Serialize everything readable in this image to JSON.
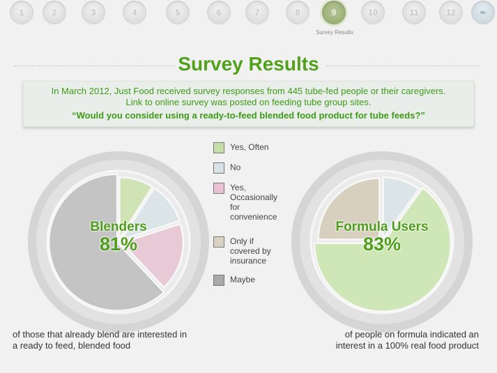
{
  "nav": {
    "items": [
      "1",
      "2",
      "3",
      "4",
      "5",
      "6",
      "7",
      "8",
      "9",
      "10",
      "11",
      "12"
    ],
    "active_index": 8,
    "active_caption": "Survey Results",
    "last_icon": "ribbon-icon"
  },
  "title": "Survey Results",
  "banner": {
    "line1": "In March 2012,  Just Food received survey responses from 445 tube-fed people or their caregivers.",
    "line2": "Link to online survey was posted on feeding tube group sites.",
    "question": "“Would you consider using a ready-to-feed blended food product for tube feeds?”"
  },
  "legend": [
    {
      "label": "Yes, Often",
      "color": "#c6dfa7"
    },
    {
      "label": "No",
      "color": "#d6e2e6"
    },
    {
      "label": "Yes, Occasionally for convenience",
      "color": "#e8c1d2"
    },
    {
      "label": "Only if covered by insurance",
      "color": "#d9d2c0"
    },
    {
      "label": "Maybe",
      "color": "#a9a9a9"
    }
  ],
  "chart_data": [
    {
      "type": "pie",
      "title": "Blenders",
      "headline": "81%",
      "slices": [
        {
          "label": "Yes, Often",
          "value": 9,
          "color": "#cfe3b5"
        },
        {
          "label": "No",
          "value": 11,
          "color": "#dbe5e8"
        },
        {
          "label": "Yes, Occasionally for convenience",
          "value": 18,
          "color": "#e8cad6"
        },
        {
          "label": "Maybe",
          "value": 62,
          "color": "#c4c4c4"
        }
      ]
    },
    {
      "type": "pie",
      "title": "Formula Users",
      "headline": "83%",
      "slices": [
        {
          "label": "No",
          "value": 10,
          "color": "#dbe5e8"
        },
        {
          "label": "Yes, Often",
          "value": 65,
          "color": "#cfe6b6"
        },
        {
          "label": "Only if covered by insurance",
          "value": 25,
          "color": "#d8d0bf"
        }
      ]
    }
  ],
  "captions": {
    "left_line1": "of those that already blend are interested in",
    "left_line2": "a ready to feed, blended food",
    "right_line1": "of people on formula indicated an",
    "right_line2": "interest in a 100% real food product"
  }
}
